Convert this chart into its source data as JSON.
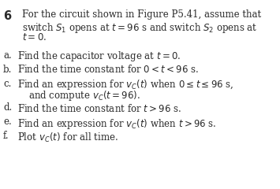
{
  "background_color": "#ffffff",
  "text_color": "#2b2b2b",
  "fs": 8.5,
  "fs_num": 10.5,
  "header_lines": [
    "For the circuit shown in Figure P5.41, assume that",
    "switch $S_1$ opens at $t = 96$ s and switch $S_2$ opens at",
    "$t = 0$."
  ],
  "parts": [
    {
      "label": "a.",
      "line1": "Find the capacitor voltage at $t = 0$.",
      "line2": ""
    },
    {
      "label": "b.",
      "line1": "Find the time constant for $0 < t < 96$ s.",
      "line2": ""
    },
    {
      "label": "c.",
      "line1": "Find an expression for $v_C(t)$ when $0 \\leq t \\leq 96$ s,",
      "line2": "and compute $v_C(t = 96)$."
    },
    {
      "label": "d.",
      "line1": "Find the time constant for $t > 96$ s.",
      "line2": ""
    },
    {
      "label": "e.",
      "line1": "Find an expression for $v_C(t)$ when $t > 96$ s.",
      "line2": ""
    },
    {
      "label": "f.",
      "line1": "Plot $v_C(t)$ for all time.",
      "line2": ""
    }
  ]
}
